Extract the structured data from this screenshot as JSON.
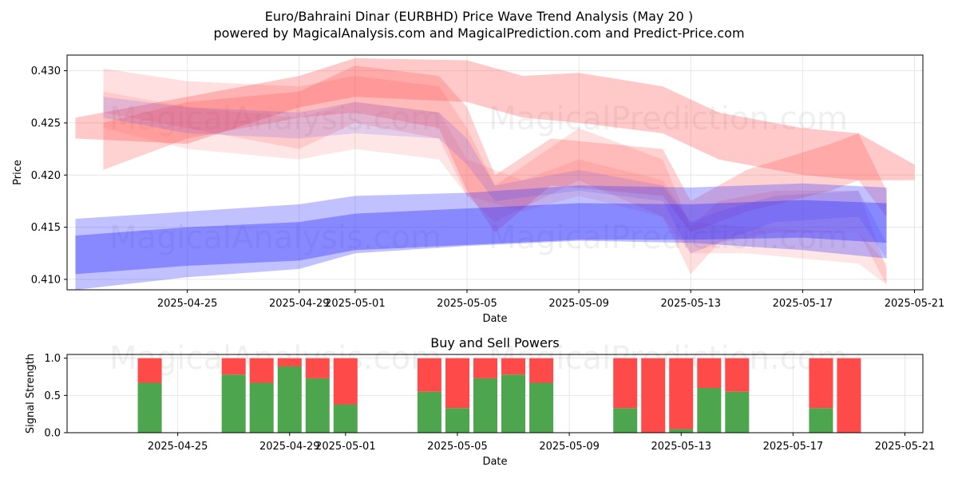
{
  "title": "Euro/Bahraini Dinar (EURBHD) Price Wave Trend Analysis (May 20 )",
  "subtitle": "powered by MagicalAnalysis.com and MagicalPrediction.com and Predict-Price.com",
  "watermarks": [
    "MagicalAnalysis.com",
    "MagicalPrediction.com"
  ],
  "colors": {
    "red": "#ff4d4d",
    "blue": "#3333ff",
    "green": "#4da64d",
    "sell": "#ff4a4a",
    "grid": "#e6e6e6"
  },
  "chart_data": [
    {
      "type": "area",
      "title": "",
      "xlabel": "Date",
      "ylabel": "Price",
      "x_range": [
        "2025-04-21",
        "2025-05-21"
      ],
      "ylim": [
        0.409,
        0.4315
      ],
      "x_ticks": [
        "2025-04-25",
        "2025-04-29",
        "2025-05-01",
        "2025-05-05",
        "2025-05-09",
        "2025-05-13",
        "2025-05-17",
        "2025-05-21"
      ],
      "y_ticks": [
        "0.410",
        "0.415",
        "0.420",
        "0.425",
        "0.430"
      ],
      "grid": true,
      "series": [
        {
          "name": "red-wave-1",
          "color": "red",
          "opacity": 0.3,
          "x": [
            "2025-04-21",
            "2025-04-25",
            "2025-04-29",
            "2025-05-01",
            "2025-05-05",
            "2025-05-07",
            "2025-05-09",
            "2025-05-12",
            "2025-05-14",
            "2025-05-17",
            "2025-05-19",
            "2025-05-21"
          ],
          "upper": [
            0.4255,
            0.4275,
            0.4295,
            0.4312,
            0.431,
            0.4295,
            0.4298,
            0.4285,
            0.426,
            0.4245,
            0.424,
            0.421
          ],
          "lower": [
            0.4235,
            0.423,
            0.4265,
            0.4275,
            0.427,
            0.4255,
            0.425,
            0.424,
            0.4215,
            0.42,
            0.4195,
            0.4195
          ]
        },
        {
          "name": "red-wave-2",
          "color": "red",
          "opacity": 0.25,
          "x": [
            "2025-04-22",
            "2025-04-25",
            "2025-04-29",
            "2025-05-01",
            "2025-05-04",
            "2025-05-05",
            "2025-05-06",
            "2025-05-08",
            "2025-05-12",
            "2025-05-13",
            "2025-05-15",
            "2025-05-18",
            "2025-05-19",
            "2025-05-20"
          ],
          "upper": [
            0.425,
            0.427,
            0.428,
            0.4305,
            0.4295,
            0.4265,
            0.42,
            0.4235,
            0.4225,
            0.4175,
            0.4205,
            0.423,
            0.424,
            0.4185
          ],
          "lower": [
            0.4205,
            0.4235,
            0.4255,
            0.426,
            0.4245,
            0.4185,
            0.4145,
            0.419,
            0.418,
            0.4145,
            0.4165,
            0.4185,
            0.4195,
            0.416
          ]
        },
        {
          "name": "red-wave-3",
          "color": "red",
          "opacity": 0.18,
          "x": [
            "2025-04-22",
            "2025-04-25",
            "2025-04-29",
            "2025-05-01",
            "2025-05-04",
            "2025-05-05",
            "2025-05-06",
            "2025-05-09",
            "2025-05-12",
            "2025-05-13",
            "2025-05-14",
            "2025-05-16",
            "2025-05-19",
            "2025-05-20"
          ],
          "upper": [
            0.4302,
            0.429,
            0.4285,
            0.4295,
            0.4285,
            0.4245,
            0.419,
            0.4245,
            0.4215,
            0.415,
            0.4175,
            0.4185,
            0.4185,
            0.411
          ],
          "lower": [
            0.426,
            0.4245,
            0.4225,
            0.425,
            0.4235,
            0.418,
            0.4155,
            0.4195,
            0.416,
            0.4105,
            0.4135,
            0.4145,
            0.4145,
            0.4095
          ]
        },
        {
          "name": "red-wave-4",
          "color": "red",
          "opacity": 0.14,
          "x": [
            "2025-04-22",
            "2025-04-25",
            "2025-04-29",
            "2025-05-01",
            "2025-05-04",
            "2025-05-05",
            "2025-05-07",
            "2025-05-09",
            "2025-05-12",
            "2025-05-13",
            "2025-05-15",
            "2025-05-19",
            "2025-05-20"
          ],
          "upper": [
            0.428,
            0.4265,
            0.4255,
            0.427,
            0.426,
            0.4215,
            0.4195,
            0.4215,
            0.4195,
            0.4155,
            0.415,
            0.4145,
            0.4115
          ],
          "lower": [
            0.4245,
            0.4225,
            0.4215,
            0.4225,
            0.4215,
            0.418,
            0.4165,
            0.418,
            0.416,
            0.4125,
            0.4125,
            0.4115,
            0.4095
          ]
        },
        {
          "name": "blue-wave-1",
          "color": "blue",
          "opacity": 0.3,
          "x": [
            "2025-04-21",
            "2025-04-25",
            "2025-04-29",
            "2025-05-01",
            "2025-05-05",
            "2025-05-09",
            "2025-05-13",
            "2025-05-17",
            "2025-05-20"
          ],
          "upper": [
            0.4158,
            0.4165,
            0.4172,
            0.418,
            0.4183,
            0.419,
            0.4188,
            0.4192,
            0.4188
          ],
          "lower": [
            0.409,
            0.4102,
            0.411,
            0.4125,
            0.4132,
            0.4137,
            0.4135,
            0.4128,
            0.412
          ]
        },
        {
          "name": "blue-wave-2",
          "color": "blue",
          "opacity": 0.4,
          "x": [
            "2025-04-21",
            "2025-04-25",
            "2025-04-29",
            "2025-05-01",
            "2025-05-05",
            "2025-05-09",
            "2025-05-13",
            "2025-05-17",
            "2025-05-20"
          ],
          "upper": [
            0.4142,
            0.415,
            0.4155,
            0.4163,
            0.4168,
            0.4173,
            0.4172,
            0.4176,
            0.4173
          ],
          "lower": [
            0.4105,
            0.4113,
            0.4118,
            0.4128,
            0.4133,
            0.4138,
            0.4138,
            0.414,
            0.4135
          ]
        },
        {
          "name": "blue-wave-3",
          "color": "blue",
          "opacity": 0.14,
          "x": [
            "2025-04-22",
            "2025-04-25",
            "2025-04-29",
            "2025-05-01",
            "2025-05-04",
            "2025-05-05",
            "2025-05-06",
            "2025-05-09",
            "2025-05-12",
            "2025-05-13",
            "2025-05-14",
            "2025-05-16",
            "2025-05-19",
            "2025-05-20"
          ],
          "upper": [
            0.4275,
            0.4265,
            0.426,
            0.427,
            0.426,
            0.4235,
            0.419,
            0.4205,
            0.419,
            0.4155,
            0.4165,
            0.418,
            0.4185,
            0.4135
          ],
          "lower": [
            0.4255,
            0.424,
            0.4235,
            0.424,
            0.4235,
            0.421,
            0.4175,
            0.4185,
            0.4175,
            0.4125,
            0.4135,
            0.4155,
            0.416,
            0.412
          ]
        }
      ]
    },
    {
      "type": "bar",
      "title": "Buy and Sell Powers",
      "xlabel": "Date",
      "ylabel": "Signal Strength",
      "ylim": [
        0,
        1.05
      ],
      "y_ticks": [
        "0.0",
        "0.5",
        "1.0"
      ],
      "x_ticks": [
        "2025-04-25",
        "2025-04-29",
        "2025-05-01",
        "2025-05-05",
        "2025-05-09",
        "2025-05-13",
        "2025-05-17",
        "2025-05-21"
      ],
      "categories": [
        "2025-04-24",
        "2025-04-27",
        "2025-04-28",
        "2025-04-29",
        "2025-04-30",
        "2025-05-01",
        "2025-05-04",
        "2025-05-05",
        "2025-05-06",
        "2025-05-07",
        "2025-05-08",
        "2025-05-11",
        "2025-05-12",
        "2025-05-13",
        "2025-05-14",
        "2025-05-15",
        "2025-05-18",
        "2025-05-19"
      ],
      "series": [
        {
          "name": "Buy",
          "color": "green",
          "values": [
            0.67,
            0.78,
            0.67,
            0.89,
            0.73,
            0.38,
            0.55,
            0.33,
            0.73,
            0.78,
            0.67,
            0.33,
            0.0,
            0.05,
            0.6,
            0.55,
            0.33,
            0.0
          ]
        },
        {
          "name": "Sell",
          "color": "sell",
          "values": [
            0.33,
            0.22,
            0.33,
            0.11,
            0.27,
            0.62,
            0.45,
            0.67,
            0.27,
            0.22,
            0.33,
            0.67,
            1.0,
            0.95,
            0.4,
            0.45,
            0.67,
            1.0
          ]
        }
      ],
      "grid": true
    }
  ]
}
